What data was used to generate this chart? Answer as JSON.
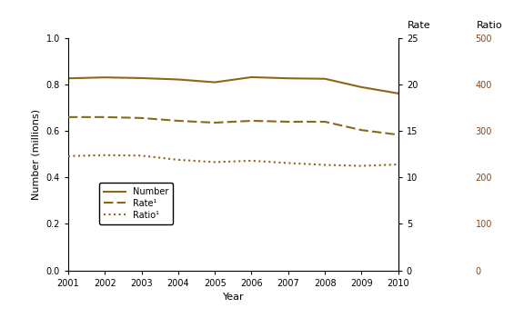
{
  "years": [
    2001,
    2002,
    2003,
    2004,
    2005,
    2006,
    2007,
    2008,
    2009,
    2010
  ],
  "number_millions": [
    0.827,
    0.831,
    0.828,
    0.822,
    0.81,
    0.832,
    0.827,
    0.825,
    0.789,
    0.762
  ],
  "rate": [
    16.5,
    16.5,
    16.4,
    16.1,
    15.9,
    16.1,
    16.0,
    16.0,
    15.1,
    14.6
  ],
  "ratio": [
    246,
    248,
    247,
    238,
    233,
    236,
    231,
    227,
    225,
    228
  ],
  "line_color": "#8B6914",
  "ratio_tick_color": "#8B4513",
  "bg_color": "#ffffff",
  "left_ylim": [
    0.0,
    1.0
  ],
  "left_yticks": [
    0.0,
    0.2,
    0.4,
    0.6,
    0.8,
    1.0
  ],
  "rate_ylim": [
    0,
    25
  ],
  "rate_yticks": [
    0,
    5,
    10,
    15,
    20,
    25
  ],
  "ratio_ylim": [
    0,
    500
  ],
  "ratio_yticks": [
    0,
    100,
    200,
    300,
    400,
    500
  ],
  "xlabel": "Year",
  "ylabel": "Number (millions)",
  "rate_label": "Rate",
  "ratio_label": "Ratio",
  "legend_number": "Number",
  "legend_rate": "Rate¹",
  "legend_ratio": "Ratio¹",
  "axis_fontsize": 8,
  "tick_fontsize": 7,
  "legend_fontsize": 7,
  "header_fontsize": 8
}
